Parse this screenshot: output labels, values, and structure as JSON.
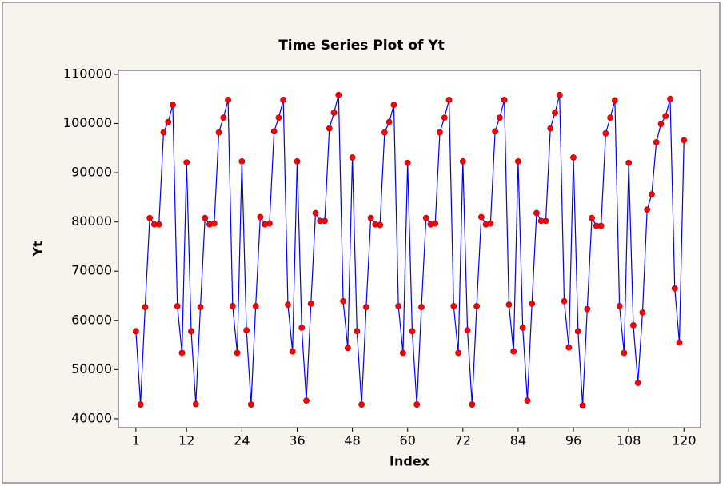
{
  "chart_data": {
    "type": "line",
    "title": "Time Series Plot of Yt",
    "x_label": "Index",
    "y_label": "Yt",
    "x": [
      1,
      2,
      3,
      4,
      5,
      6,
      7,
      8,
      9,
      10,
      11,
      12,
      13,
      14,
      15,
      16,
      17,
      18,
      19,
      20,
      21,
      22,
      23,
      24,
      25,
      26,
      27,
      28,
      29,
      30,
      31,
      32,
      33,
      34,
      35,
      36,
      37,
      38,
      39,
      40,
      41,
      42,
      43,
      44,
      45,
      46,
      47,
      48,
      49,
      50,
      51,
      52,
      53,
      54,
      55,
      56,
      57,
      58,
      59,
      60,
      61,
      62,
      63,
      64,
      65,
      66,
      67,
      68,
      69,
      70,
      71,
      72,
      73,
      74,
      75,
      76,
      77,
      78,
      79,
      80,
      81,
      82,
      83,
      84,
      85,
      86,
      87,
      88,
      89,
      90,
      91,
      92,
      93,
      94,
      95,
      96,
      97,
      98,
      99,
      100,
      101,
      102,
      103,
      104,
      105,
      106,
      107,
      108,
      109,
      110,
      111,
      112,
      113,
      114,
      115,
      116,
      117,
      118,
      119,
      120
    ],
    "series": [
      {
        "name": "Yt",
        "color": "#0000ff",
        "marker_color": "#ff0000",
        "values": [
          57800,
          42900,
          62700,
          80800,
          79500,
          79500,
          98200,
          100300,
          103800,
          62900,
          53400,
          92100,
          57800,
          43000,
          62700,
          80800,
          79500,
          79700,
          98200,
          101200,
          104800,
          62900,
          53400,
          92300,
          58000,
          42900,
          62900,
          81000,
          79500,
          79700,
          98400,
          101200,
          104800,
          63200,
          53700,
          92300,
          58500,
          43700,
          63400,
          81800,
          80200,
          80200,
          99000,
          102200,
          105800,
          63900,
          54400,
          93100,
          57800,
          42900,
          62700,
          80800,
          79500,
          79400,
          98200,
          100300,
          103800,
          62900,
          53400,
          92000,
          57800,
          42900,
          62700,
          80800,
          79500,
          79700,
          98200,
          101200,
          104800,
          62900,
          53400,
          92300,
          58000,
          42900,
          62900,
          81000,
          79500,
          79700,
          98400,
          101200,
          104800,
          63200,
          53700,
          92300,
          58500,
          43700,
          63400,
          81800,
          80200,
          80200,
          99000,
          102200,
          105800,
          63900,
          54500,
          93100,
          57800,
          42700,
          62300,
          80800,
          79200,
          79200,
          98000,
          101200,
          104700,
          62900,
          53400,
          92000,
          59000,
          47300,
          61600,
          82500,
          85600,
          96200,
          99900,
          101500,
          105000,
          66500,
          55500,
          96600
        ]
      }
    ],
    "xlim": [
      -2.8,
      123.6
    ],
    "ylim": [
      38200,
      110800
    ],
    "xticks": [
      1,
      12,
      24,
      36,
      48,
      60,
      72,
      84,
      96,
      108,
      120
    ],
    "yticks": [
      40000,
      50000,
      60000,
      70000,
      80000,
      90000,
      100000,
      110000
    ]
  }
}
